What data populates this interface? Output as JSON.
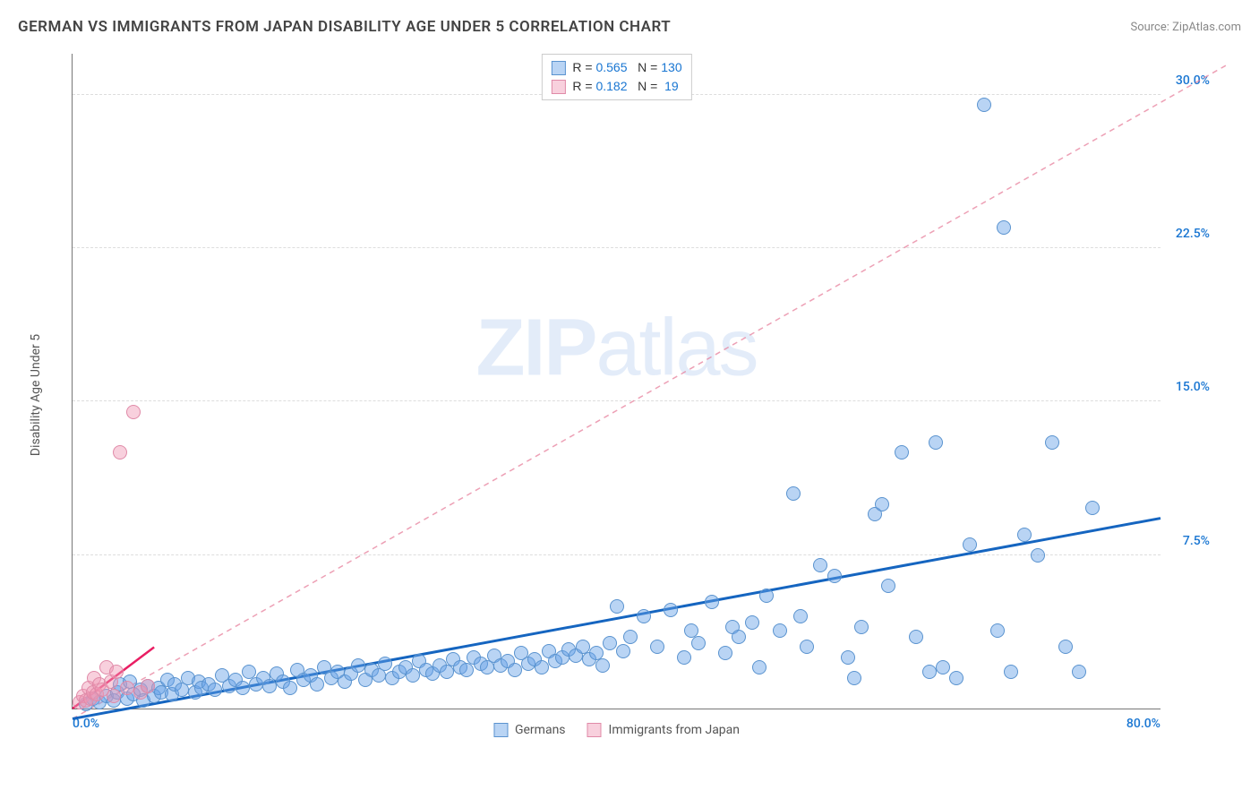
{
  "header": {
    "title": "GERMAN VS IMMIGRANTS FROM JAPAN DISABILITY AGE UNDER 5 CORRELATION CHART",
    "source": "Source: ZipAtlas.com"
  },
  "watermark": {
    "bold": "ZIP",
    "rest": "atlas"
  },
  "chart": {
    "type": "scatter",
    "y_axis_label": "Disability Age Under 5",
    "background_color": "#ffffff",
    "grid_color": "#dddddd",
    "axis_color": "#777777",
    "xlim": [
      0,
      80
    ],
    "ylim": [
      0,
      32
    ],
    "x_ticks": [
      {
        "value": 0,
        "label": "0.0%",
        "color": "#1976d2"
      },
      {
        "value": 80,
        "label": "80.0%",
        "color": "#1976d2"
      }
    ],
    "y_ticks": [
      {
        "value": 7.5,
        "label": "7.5%",
        "color": "#1976d2"
      },
      {
        "value": 15.0,
        "label": "15.0%",
        "color": "#1976d2"
      },
      {
        "value": 22.5,
        "label": "22.5%",
        "color": "#1976d2"
      },
      {
        "value": 30.0,
        "label": "30.0%",
        "color": "#1976d2"
      }
    ],
    "series": [
      {
        "name": "Germans",
        "fill_color": "rgba(100,160,230,0.45)",
        "stroke_color": "#5a93cf",
        "marker_radius": 8,
        "trend": {
          "x1": 0,
          "y1": -0.5,
          "x2": 80,
          "y2": 9.3,
          "color": "#1565c0",
          "width": 3,
          "dash": "none",
          "extend_x2": 85,
          "extend_y2": 31.5,
          "extend_dash": "6,5",
          "extend_color": "rgba(230,120,150,0.7)"
        },
        "correlation": {
          "r": "0.565",
          "n": "130"
        },
        "points": [
          [
            1,
            0.2
          ],
          [
            1.5,
            0.5
          ],
          [
            2,
            0.3
          ],
          [
            2.5,
            0.6
          ],
          [
            3,
            0.4
          ],
          [
            3.3,
            0.8
          ],
          [
            3.5,
            1.2
          ],
          [
            4,
            0.5
          ],
          [
            4.2,
            1.3
          ],
          [
            4.5,
            0.7
          ],
          [
            5,
            0.9
          ],
          [
            5.2,
            0.4
          ],
          [
            5.5,
            1.1
          ],
          [
            6,
            0.6
          ],
          [
            6.3,
            1.0
          ],
          [
            6.5,
            0.8
          ],
          [
            7,
            1.4
          ],
          [
            7.3,
            0.7
          ],
          [
            7.5,
            1.2
          ],
          [
            8,
            0.9
          ],
          [
            8.5,
            1.5
          ],
          [
            9,
            0.8
          ],
          [
            9.3,
            1.3
          ],
          [
            9.5,
            1.0
          ],
          [
            10,
            1.2
          ],
          [
            10.5,
            0.9
          ],
          [
            11,
            1.6
          ],
          [
            11.5,
            1.1
          ],
          [
            12,
            1.4
          ],
          [
            12.5,
            1.0
          ],
          [
            13,
            1.8
          ],
          [
            13.5,
            1.2
          ],
          [
            14,
            1.5
          ],
          [
            14.5,
            1.1
          ],
          [
            15,
            1.7
          ],
          [
            15.5,
            1.3
          ],
          [
            16,
            1.0
          ],
          [
            16.5,
            1.9
          ],
          [
            17,
            1.4
          ],
          [
            17.5,
            1.6
          ],
          [
            18,
            1.2
          ],
          [
            18.5,
            2.0
          ],
          [
            19,
            1.5
          ],
          [
            19.5,
            1.8
          ],
          [
            20,
            1.3
          ],
          [
            20.5,
            1.7
          ],
          [
            21,
            2.1
          ],
          [
            21.5,
            1.4
          ],
          [
            22,
            1.9
          ],
          [
            22.5,
            1.6
          ],
          [
            23,
            2.2
          ],
          [
            23.5,
            1.5
          ],
          [
            24,
            1.8
          ],
          [
            24.5,
            2.0
          ],
          [
            25,
            1.6
          ],
          [
            25.5,
            2.3
          ],
          [
            26,
            1.9
          ],
          [
            26.5,
            1.7
          ],
          [
            27,
            2.1
          ],
          [
            27.5,
            1.8
          ],
          [
            28,
            2.4
          ],
          [
            28.5,
            2.0
          ],
          [
            29,
            1.9
          ],
          [
            29.5,
            2.5
          ],
          [
            30,
            2.2
          ],
          [
            30.5,
            2.0
          ],
          [
            31,
            2.6
          ],
          [
            31.5,
            2.1
          ],
          [
            32,
            2.3
          ],
          [
            32.5,
            1.9
          ],
          [
            33,
            2.7
          ],
          [
            33.5,
            2.2
          ],
          [
            34,
            2.4
          ],
          [
            34.5,
            2.0
          ],
          [
            35,
            2.8
          ],
          [
            35.5,
            2.3
          ],
          [
            36,
            2.5
          ],
          [
            36.5,
            2.9
          ],
          [
            37,
            2.6
          ],
          [
            37.5,
            3.0
          ],
          [
            38,
            2.4
          ],
          [
            38.5,
            2.7
          ],
          [
            39,
            2.1
          ],
          [
            39.5,
            3.2
          ],
          [
            40,
            5.0
          ],
          [
            40.5,
            2.8
          ],
          [
            41,
            3.5
          ],
          [
            42,
            4.5
          ],
          [
            43,
            3.0
          ],
          [
            44,
            4.8
          ],
          [
            45,
            2.5
          ],
          [
            45.5,
            3.8
          ],
          [
            46,
            3.2
          ],
          [
            47,
            5.2
          ],
          [
            48,
            2.7
          ],
          [
            48.5,
            4.0
          ],
          [
            49,
            3.5
          ],
          [
            50,
            4.2
          ],
          [
            50.5,
            2.0
          ],
          [
            51,
            5.5
          ],
          [
            52,
            3.8
          ],
          [
            53,
            10.5
          ],
          [
            53.5,
            4.5
          ],
          [
            54,
            3.0
          ],
          [
            55,
            7.0
          ],
          [
            56,
            6.5
          ],
          [
            57,
            2.5
          ],
          [
            57.5,
            1.5
          ],
          [
            58,
            4.0
          ],
          [
            59,
            9.5
          ],
          [
            59.5,
            10.0
          ],
          [
            60,
            6.0
          ],
          [
            61,
            12.5
          ],
          [
            62,
            3.5
          ],
          [
            63,
            1.8
          ],
          [
            63.5,
            13.0
          ],
          [
            64,
            2.0
          ],
          [
            65,
            1.5
          ],
          [
            66,
            8.0
          ],
          [
            67,
            29.5
          ],
          [
            68,
            3.8
          ],
          [
            68.5,
            23.5
          ],
          [
            69,
            1.8
          ],
          [
            70,
            8.5
          ],
          [
            71,
            7.5
          ],
          [
            72,
            13.0
          ],
          [
            73,
            3.0
          ],
          [
            74,
            1.8
          ],
          [
            75,
            9.8
          ]
        ]
      },
      {
        "name": "Immigrants from Japan",
        "fill_color": "rgba(240,150,180,0.45)",
        "stroke_color": "#e08aa8",
        "marker_radius": 8,
        "trend": {
          "x1": 0,
          "y1": 0,
          "x2": 6,
          "y2": 3.0,
          "color": "#e91e63",
          "width": 2.5,
          "dash": "none"
        },
        "correlation": {
          "r": "0.182",
          "n": "19"
        },
        "points": [
          [
            0.5,
            0.3
          ],
          [
            0.8,
            0.6
          ],
          [
            1.0,
            0.4
          ],
          [
            1.2,
            1.0
          ],
          [
            1.3,
            0.5
          ],
          [
            1.5,
            0.8
          ],
          [
            1.6,
            1.5
          ],
          [
            1.8,
            0.7
          ],
          [
            2.0,
            1.2
          ],
          [
            2.2,
            0.9
          ],
          [
            2.5,
            2.0
          ],
          [
            2.8,
            1.3
          ],
          [
            3.0,
            0.6
          ],
          [
            3.2,
            1.8
          ],
          [
            3.5,
            12.5
          ],
          [
            4.0,
            1.0
          ],
          [
            4.5,
            14.5
          ],
          [
            5.0,
            0.8
          ],
          [
            5.5,
            1.1
          ]
        ]
      }
    ],
    "bottom_legend": [
      {
        "label": "Germans",
        "fill": "rgba(100,160,230,0.45)",
        "stroke": "#5a93cf"
      },
      {
        "label": "Immigrants from Japan",
        "fill": "rgba(240,150,180,0.45)",
        "stroke": "#e08aa8"
      }
    ]
  }
}
